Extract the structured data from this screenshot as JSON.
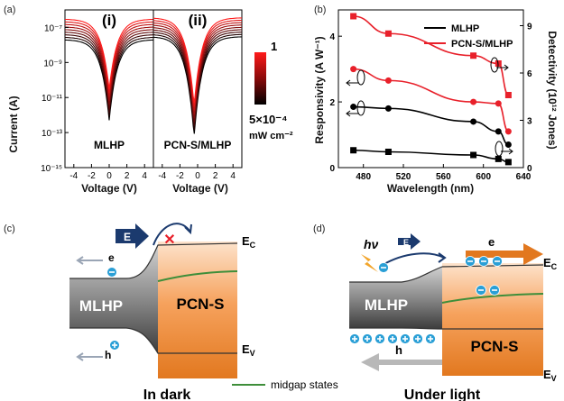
{
  "panels": {
    "a": {
      "label": "(a)",
      "sub_i": "(i)",
      "sub_ii": "(ii)",
      "ylabel": "Current (A)",
      "xlabel": "Voltage (V)",
      "left_name": "MLHP",
      "right_name": "PCN-S/MLHP",
      "colorbar_max": "1",
      "colorbar_min": "5×10⁻⁴",
      "colorbar_unit": "mW cm⁻²",
      "colors": {
        "high": "#ff1a1a",
        "low": "#000000"
      }
    },
    "b": {
      "label": "(b)",
      "xlabel": "Wavelength (nm)",
      "ylabel_left": "Responsivity (A W⁻¹)",
      "ylabel_right": "Detectivity (10¹² Jones)"
    },
    "c": {
      "label": "(c)",
      "field_label": "E",
      "electron_label": "e",
      "hole_label": "h",
      "material_left": "MLHP",
      "material_right": "PCN-S",
      "ec_label": "E",
      "ec_sub": "C",
      "ev_label": "E",
      "ev_sub": "V",
      "caption": "In dark",
      "block_mark": "✕"
    },
    "d": {
      "label": "(d)",
      "photon_label": "hν",
      "field_label": "E",
      "electron_label": "e",
      "hole_label": "h",
      "material_left": "MLHP",
      "material_right": "PCN-S",
      "ec_label": "E",
      "ec_sub": "C",
      "ev_label": "E",
      "ev_sub": "V",
      "caption": "Under light"
    },
    "legend_midgap": "midgap states"
  },
  "chart_data": [
    {
      "panel": "a",
      "type": "line",
      "yscale": "log",
      "ylabel": "Current (A)",
      "xlabel": "Voltage (V)",
      "ylim": [
        1e-15,
        1e-06
      ],
      "y_ticks": [
        "10⁻⁷",
        "10⁻⁹",
        "10⁻¹¹",
        "10⁻¹³",
        "10⁻¹⁵"
      ],
      "subplots": [
        {
          "name": "MLHP",
          "xlim": [
            -5,
            5
          ],
          "x_ticks": [
            "-4",
            "-2",
            "0",
            "2",
            "4"
          ],
          "dip_at": 0.0,
          "curve_count": 9
        },
        {
          "name": "PCN-S/MLHP",
          "xlim": [
            -5,
            5
          ],
          "x_ticks": [
            "-4",
            "-2",
            "0",
            "2",
            "4"
          ],
          "dip_at": -0.4,
          "curve_count": 9
        }
      ],
      "colorbar": {
        "max": "1",
        "min": "5×10⁻⁴",
        "unit": "mW cm⁻²"
      }
    },
    {
      "panel": "b",
      "type": "line",
      "xlabel": "Wavelength (nm)",
      "ylabel": "Responsivity (A W⁻¹)",
      "ylabel_right": "Detectivity (10¹² Jones)",
      "xlim": [
        455,
        640
      ],
      "ylim": [
        0,
        4.8
      ],
      "ylim_right": [
        0,
        10
      ],
      "x_ticks": [
        "480",
        "520",
        "560",
        "600",
        "640"
      ],
      "y_ticks": [
        "0",
        "2",
        "4"
      ],
      "y_ticks_right": [
        "0",
        "3",
        "6",
        "9"
      ],
      "legend": [
        {
          "name": "MLHP",
          "color": "#000000"
        },
        {
          "name": "PCN-S/MLHP",
          "color": "#e8202a"
        }
      ],
      "series": [
        {
          "name": "MLHP",
          "axis": "left",
          "marker": "circle",
          "color": "#000000",
          "x": [
            470,
            505,
            590,
            615,
            625
          ],
          "y": [
            1.85,
            1.8,
            1.4,
            1.1,
            0.7
          ]
        },
        {
          "name": "MLHP",
          "axis": "right",
          "marker": "square",
          "color": "#000000",
          "x": [
            470,
            505,
            590,
            615,
            625
          ],
          "y": [
            1.1,
            1.0,
            0.8,
            0.55,
            0.35
          ]
        },
        {
          "name": "PCN-S/MLHP",
          "axis": "left",
          "marker": "circle",
          "color": "#e8202a",
          "x": [
            470,
            505,
            590,
            615,
            625
          ],
          "y": [
            3.0,
            2.65,
            2.0,
            1.95,
            1.1
          ]
        },
        {
          "name": "PCN-S/MLHP",
          "axis": "right",
          "marker": "square",
          "color": "#e8202a",
          "x": [
            470,
            505,
            590,
            615,
            625
          ],
          "y": [
            9.6,
            8.5,
            7.1,
            6.6,
            4.6
          ]
        }
      ]
    }
  ]
}
